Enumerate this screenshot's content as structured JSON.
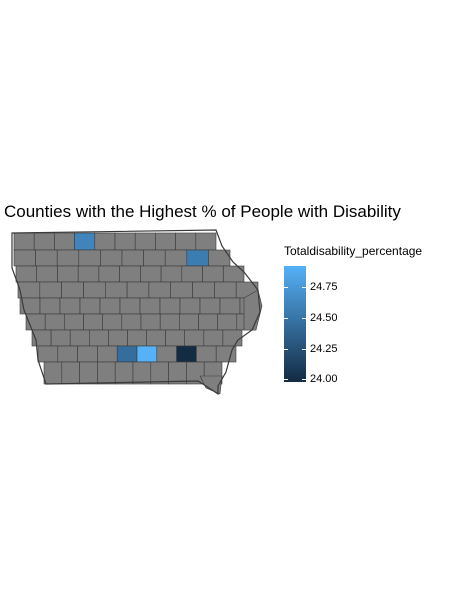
{
  "title": "Counties with the Highest % of People with Disability",
  "legend": {
    "title": "Totaldisability_percentage",
    "ticks": [
      "24.75",
      "24.50",
      "24.25",
      "24.00"
    ],
    "low_color": "#132B43",
    "high_color": "#56B1F7"
  },
  "colors": {
    "county_fill": "#7f7f7f",
    "county_border": "#3a3a3a"
  },
  "chart_data": {
    "type": "choropleth",
    "region": "Iowa counties",
    "title": "Counties with the Highest % of People with Disability",
    "fill_variable": "Totaldisability_percentage",
    "scale": {
      "min": 24.0,
      "max": 24.9
    },
    "highlighted_counties": [
      {
        "value": 24.6
      },
      {
        "value": 24.55
      },
      {
        "value": 24.45
      },
      {
        "value": 24.9
      },
      {
        "value": 24.0
      }
    ],
    "no_data_fill": "#7f7f7f"
  }
}
